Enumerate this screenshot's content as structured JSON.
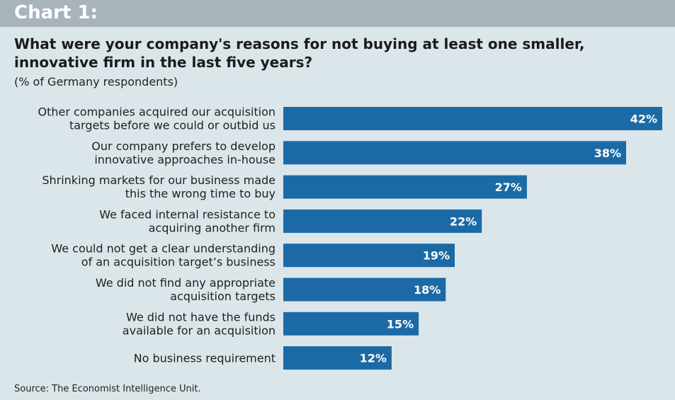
{
  "header": {
    "chart_label": "Chart 1:",
    "title": "What were your company's reasons for not buying at least one smaller, innovative firm in the last five years?",
    "subtitle": "(% of Germany respondents)"
  },
  "footer": {
    "source": "Source: The Economist Intelligence Unit."
  },
  "colors": {
    "bar": "#1b6aa6",
    "background": "#dbe6ea",
    "header_band": "#a8b4ba"
  },
  "chart_data": {
    "type": "bar",
    "orientation": "horizontal",
    "value_suffix": "%",
    "xlim": [
      0,
      42
    ],
    "grid": false,
    "legend": "none",
    "categories": [
      [
        "Other companies acquired our acquisition",
        "targets before we could or outbid us"
      ],
      [
        "Our company prefers to develop",
        "innovative approaches in-house"
      ],
      [
        "Shrinking markets for our business made",
        "this the wrong time to buy"
      ],
      [
        "We faced internal resistance to",
        "acquiring another firm"
      ],
      [
        "We could not get a clear understanding",
        "of an acquisition target’s business"
      ],
      [
        "We did not find any appropriate",
        "acquisition targets"
      ],
      [
        "We did not have the funds",
        "available for an acquisition"
      ],
      [
        "No business requirement"
      ]
    ],
    "values": [
      42,
      38,
      27,
      22,
      19,
      18,
      15,
      12
    ]
  }
}
